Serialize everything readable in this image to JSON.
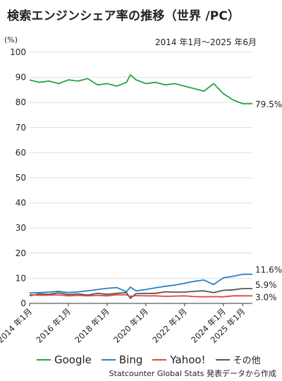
{
  "title": "検索エンジンシェア率の推移（世界 /PC）",
  "subtitle": "2014 年1月〜2025 年6月",
  "source": "Statcounter Global Stats 発表データから作成",
  "colors": {
    "Google": "#27a244",
    "Bing": "#2f7ec2",
    "Yahoo!": "#e2483f",
    "その他": "#555555"
  },
  "chart_data": {
    "type": "line",
    "title": "検索エンジンシェア率の推移（世界 /PC）",
    "subtitle": "2014 年1月〜2025 年6月",
    "ylabel": "(%)",
    "ylim": [
      0,
      100
    ],
    "yticks": [
      0,
      10,
      20,
      30,
      40,
      50,
      60,
      70,
      80,
      90,
      100
    ],
    "xlim": [
      2014.0,
      2025.5
    ],
    "xticks": [
      {
        "value": 2014.0,
        "label": "2014 年1月"
      },
      {
        "value": 2016.0,
        "label": "2016 年1月"
      },
      {
        "value": 2018.0,
        "label": "2018 年1月"
      },
      {
        "value": 2020.0,
        "label": "2020 年1月"
      },
      {
        "value": 2022.0,
        "label": "2022 年1月"
      },
      {
        "value": 2024.0,
        "label": "2024 年1月"
      },
      {
        "value": 2025.0,
        "label": "2025 年1月"
      }
    ],
    "grid": true,
    "legend": "bottom",
    "x": [
      2014.0,
      2014.5,
      2015.0,
      2015.5,
      2016.0,
      2016.5,
      2017.0,
      2017.5,
      2018.0,
      2018.5,
      2019.0,
      2019.2,
      2019.5,
      2020.0,
      2020.5,
      2021.0,
      2021.5,
      2022.0,
      2022.5,
      2023.0,
      2023.5,
      2024.0,
      2024.5,
      2025.0,
      2025.5
    ],
    "series": [
      {
        "name": "Google",
        "values": [
          89.0,
          88.0,
          88.5,
          87.5,
          89.0,
          88.5,
          89.5,
          87.0,
          87.5,
          86.5,
          88.0,
          91.0,
          89.0,
          87.5,
          88.0,
          87.0,
          87.5,
          86.5,
          85.5,
          84.5,
          87.5,
          83.5,
          81.0,
          79.5,
          79.5
        ],
        "end_label": "79.5%"
      },
      {
        "name": "Bing",
        "values": [
          4.2,
          4.3,
          4.5,
          4.8,
          4.3,
          4.6,
          5.0,
          5.5,
          6.0,
          6.3,
          4.6,
          6.5,
          5.0,
          5.5,
          6.2,
          6.8,
          7.3,
          8.0,
          8.8,
          9.3,
          7.5,
          10.2,
          10.8,
          11.6,
          11.6
        ],
        "end_label": "11.6%"
      },
      {
        "name": "Yahoo!",
        "values": [
          3.5,
          3.2,
          3.3,
          3.4,
          3.0,
          3.2,
          3.0,
          3.2,
          3.0,
          3.4,
          3.4,
          2.8,
          3.1,
          3.0,
          3.0,
          2.8,
          2.9,
          3.0,
          2.7,
          2.6,
          2.7,
          2.6,
          3.0,
          3.0,
          3.0
        ],
        "end_label": "3.0%"
      },
      {
        "name": "その他",
        "values": [
          3.0,
          3.8,
          3.6,
          4.2,
          3.5,
          3.8,
          3.3,
          4.0,
          3.6,
          4.0,
          4.3,
          2.0,
          3.9,
          4.0,
          4.0,
          4.6,
          4.5,
          4.5,
          4.8,
          5.0,
          4.3,
          5.2,
          5.4,
          5.9,
          5.9
        ],
        "end_label": "5.9%"
      }
    ]
  }
}
